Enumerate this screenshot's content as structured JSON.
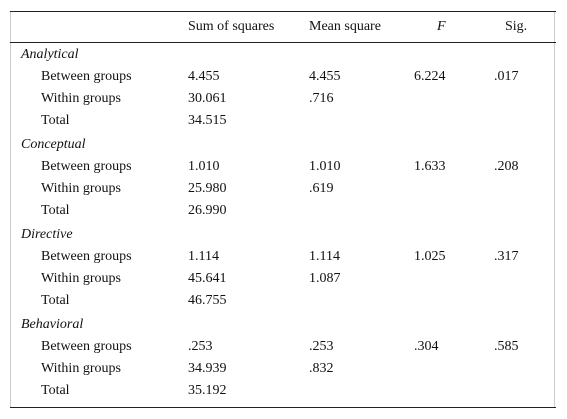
{
  "table": {
    "columns": [
      "Sum of squares",
      "Mean square",
      "F",
      "Sig."
    ],
    "groups": [
      {
        "name": "Analytical",
        "rows": [
          {
            "label": "Between groups",
            "cells": [
              "4.455",
              "4.455",
              "6.224",
              ".017"
            ]
          },
          {
            "label": "Within groups",
            "cells": [
              "30.061",
              ".716"
            ]
          },
          {
            "label": "Total",
            "cells": [
              "34.515"
            ]
          }
        ]
      },
      {
        "name": "Conceptual",
        "rows": [
          {
            "label": "Between groups",
            "cells": [
              "1.010",
              "1.010",
              "1.633",
              ".208"
            ]
          },
          {
            "label": "Within groups",
            "cells": [
              "25.980",
              ".619"
            ]
          },
          {
            "label": "Total",
            "cells": [
              "26.990"
            ]
          }
        ]
      },
      {
        "name": "Directive",
        "rows": [
          {
            "label": "Between groups",
            "cells": [
              "1.114",
              "1.114",
              "1.025",
              ".317"
            ]
          },
          {
            "label": "Within groups",
            "cells": [
              "45.641",
              "1.087"
            ]
          },
          {
            "label": "Total",
            "cells": [
              "46.755"
            ]
          }
        ]
      },
      {
        "name": "Behavioral",
        "rows": [
          {
            "label": "Between groups",
            "cells": [
              ".253",
              ".253",
              ".304",
              ".585"
            ]
          },
          {
            "label": "Within groups",
            "cells": [
              "34.939",
              ".832"
            ]
          },
          {
            "label": "Total",
            "cells": [
              "35.192"
            ]
          }
        ]
      }
    ]
  }
}
